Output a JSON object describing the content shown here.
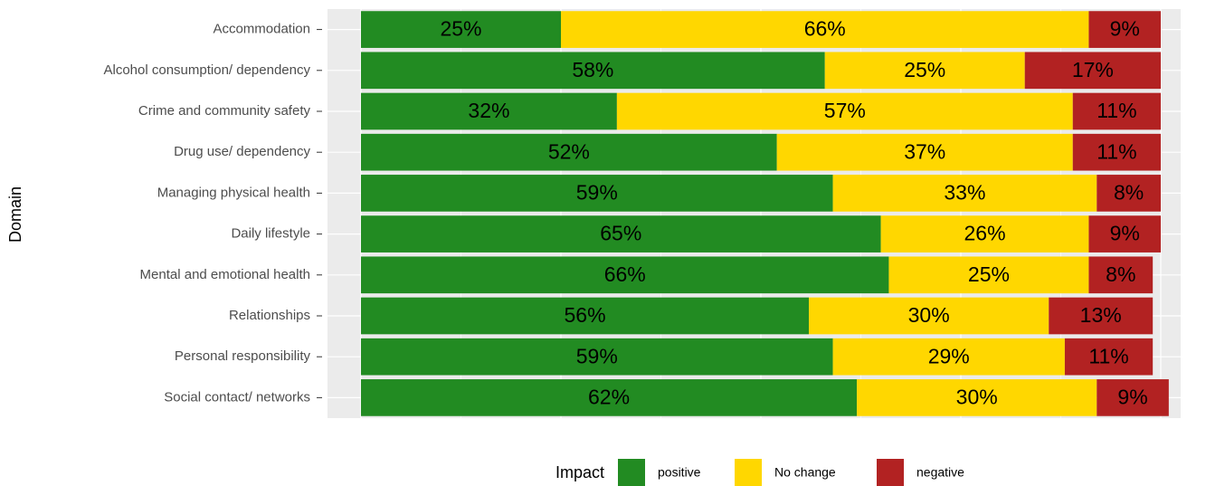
{
  "chart_data": {
    "type": "stacked-bar-horizontal",
    "y_label": "Domain",
    "legend_title": "Impact",
    "categories": [
      "Accommodation",
      "Alcohol consumption/ dependency",
      "Crime and community safety",
      "Drug use/ dependency",
      "Managing physical health",
      "Daily lifestyle",
      "Mental and emotional health",
      "Relationships",
      "Personal responsibility",
      "Social contact/ networks"
    ],
    "xlim": [
      0,
      100
    ],
    "grid": true,
    "series": [
      {
        "name": "positive",
        "color": "#228b22",
        "values": [
          25,
          58,
          32,
          52,
          59,
          65,
          66,
          56,
          59,
          62
        ],
        "value_labels": [
          "25%",
          "58%",
          "32%",
          "52%",
          "59%",
          "65%",
          "66%",
          "56%",
          "59%",
          "62%"
        ]
      },
      {
        "name": "No change",
        "color": "#ffd700",
        "values": [
          66,
          25,
          57,
          37,
          33,
          26,
          25,
          30,
          29,
          30
        ],
        "value_labels": [
          "66%",
          "25%",
          "57%",
          "37%",
          "33%",
          "26%",
          "25%",
          "30%",
          "29%",
          "30%"
        ]
      },
      {
        "name": "negative",
        "color": "#b22222",
        "values": [
          9,
          17,
          11,
          11,
          8,
          9,
          8,
          13,
          11,
          9
        ],
        "value_labels": [
          "9%",
          "17%",
          "11%",
          "11%",
          "8%",
          "9%",
          "8%",
          "13%",
          "11%",
          "9%"
        ]
      }
    ]
  }
}
